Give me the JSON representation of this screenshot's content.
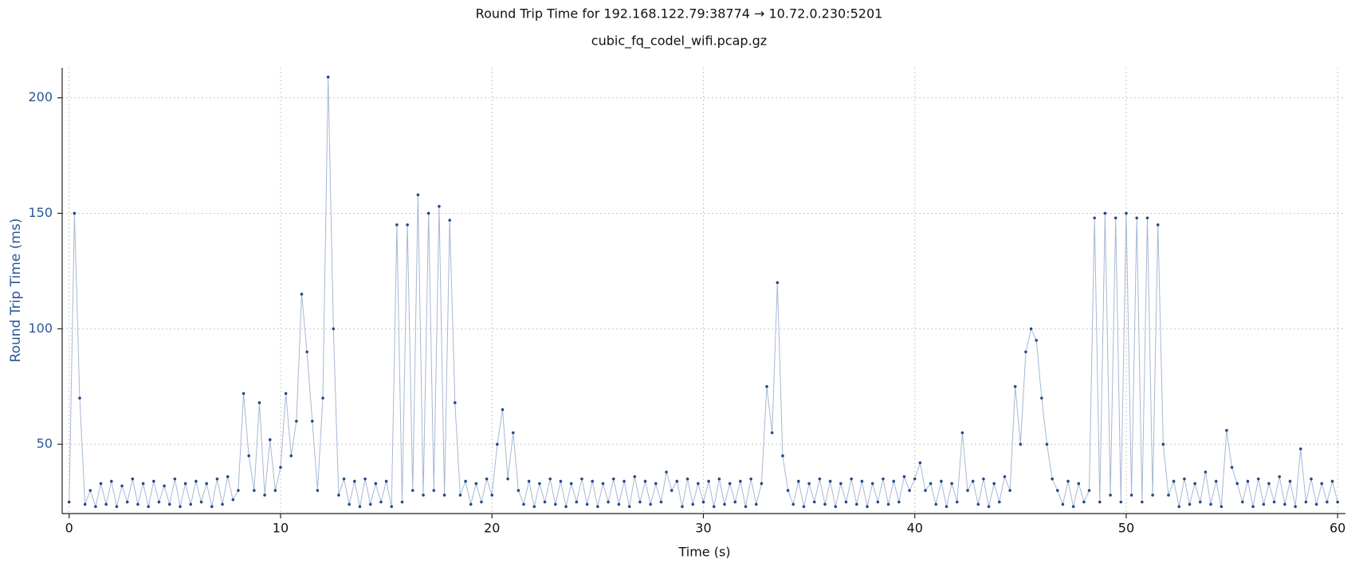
{
  "chart_data": {
    "type": "line",
    "title": "Round Trip Time for 192.168.122.79:38774 → 10.72.0.230:5201",
    "subtitle": "cubic_fq_codel_wifi.pcap.gz",
    "x_label": "Time (s)",
    "y_label": "Round Trip Time (ms)",
    "xlim": [
      -0.33,
      60.37
    ],
    "ylim": [
      20,
      213
    ],
    "xticks": [
      0,
      10,
      20,
      30,
      40,
      50,
      60
    ],
    "yticks": [
      50,
      100,
      150,
      200
    ],
    "grid": true,
    "x": [
      0,
      0.25,
      0.5,
      0.75,
      1,
      1.25,
      1.5,
      1.75,
      2,
      2.25,
      2.5,
      2.75,
      3,
      3.25,
      3.5,
      3.75,
      4,
      4.25,
      4.5,
      4.75,
      5,
      5.25,
      5.5,
      5.75,
      6,
      6.25,
      6.5,
      6.75,
      7,
      7.25,
      7.5,
      7.75,
      8,
      8.25,
      8.5,
      8.75,
      9,
      9.25,
      9.5,
      9.75,
      10,
      10.25,
      10.5,
      10.75,
      11,
      11.25,
      11.5,
      11.75,
      12,
      12.25,
      12.5,
      12.75,
      13,
      13.25,
      13.5,
      13.75,
      14,
      14.25,
      14.5,
      14.75,
      15,
      15.25,
      15.5,
      15.75,
      16,
      16.25,
      16.5,
      16.75,
      17,
      17.25,
      17.5,
      17.75,
      18,
      18.25,
      18.5,
      18.75,
      19,
      19.25,
      19.5,
      19.75,
      20,
      20.25,
      20.5,
      20.75,
      21,
      21.25,
      21.5,
      21.75,
      22,
      22.25,
      22.5,
      22.75,
      23,
      23.25,
      23.5,
      23.75,
      24,
      24.25,
      24.5,
      24.75,
      25,
      25.25,
      25.5,
      25.75,
      26,
      26.25,
      26.5,
      26.75,
      27,
      27.25,
      27.5,
      27.75,
      28,
      28.25,
      28.5,
      28.75,
      29,
      29.25,
      29.5,
      29.75,
      30,
      30.25,
      30.5,
      30.75,
      31,
      31.25,
      31.5,
      31.75,
      32,
      32.25,
      32.5,
      32.75,
      33,
      33.25,
      33.5,
      33.75,
      34,
      34.25,
      34.5,
      34.75,
      35,
      35.25,
      35.5,
      35.75,
      36,
      36.25,
      36.5,
      36.75,
      37,
      37.25,
      37.5,
      37.75,
      38,
      38.25,
      38.5,
      38.75,
      39,
      39.25,
      39.5,
      39.75,
      40,
      40.25,
      40.5,
      40.75,
      41,
      41.25,
      41.5,
      41.75,
      42,
      42.25,
      42.5,
      42.75,
      43,
      43.25,
      43.5,
      43.75,
      44,
      44.25,
      44.5,
      44.75,
      45,
      45.25,
      45.5,
      45.75,
      46,
      46.25,
      46.5,
      46.75,
      47,
      47.25,
      47.5,
      47.75,
      48,
      48.25,
      48.5,
      48.75,
      49,
      49.25,
      49.5,
      49.75,
      50,
      50.25,
      50.5,
      50.75,
      51,
      51.25,
      51.5,
      51.75,
      52,
      52.25,
      52.5,
      52.75,
      53,
      53.25,
      53.5,
      53.75,
      54,
      54.25,
      54.5,
      54.75,
      55,
      55.25,
      55.5,
      55.75,
      56,
      56.25,
      56.5,
      56.75,
      57,
      57.25,
      57.5,
      57.75,
      58,
      58.25,
      58.5,
      58.75,
      59,
      59.25,
      59.5,
      59.75,
      60
    ],
    "series": [
      {
        "color": "#1f4a87",
        "line_color": "#a7b8d4",
        "values": [
          25,
          150,
          70,
          24,
          30,
          23,
          33,
          24,
          34,
          23,
          32,
          25,
          35,
          24,
          33,
          23,
          34,
          25,
          32,
          24,
          35,
          23,
          33,
          24,
          34,
          25,
          33,
          23,
          35,
          24,
          36,
          26,
          30,
          72,
          45,
          30,
          68,
          28,
          52,
          30,
          40,
          72,
          45,
          60,
          115,
          90,
          60,
          30,
          70,
          209,
          100,
          28,
          35,
          24,
          34,
          23,
          35,
          24,
          33,
          25,
          34,
          23,
          145,
          25,
          145,
          30,
          158,
          28,
          150,
          30,
          153,
          28,
          147,
          68,
          28,
          34,
          24,
          33,
          25,
          35,
          28,
          50,
          65,
          35,
          55,
          30,
          24,
          34,
          23,
          33,
          25,
          35,
          24,
          34,
          23,
          33,
          25,
          35,
          24,
          34,
          23,
          33,
          25,
          35,
          24,
          34,
          23,
          36,
          25,
          34,
          24,
          33,
          25,
          38,
          30,
          34,
          23,
          35,
          24,
          33,
          25,
          34,
          23,
          35,
          24,
          33,
          25,
          34,
          23,
          35,
          24,
          33,
          75,
          55,
          120,
          45,
          30,
          24,
          34,
          23,
          33,
          25,
          35,
          24,
          34,
          23,
          33,
          25,
          35,
          24,
          34,
          23,
          33,
          25,
          35,
          24,
          34,
          25,
          36,
          30,
          35,
          42,
          30,
          33,
          24,
          34,
          23,
          33,
          25,
          55,
          30,
          34,
          24,
          35,
          23,
          33,
          25,
          36,
          30,
          75,
          50,
          90,
          100,
          95,
          70,
          50,
          35,
          30,
          24,
          34,
          23,
          33,
          25,
          30,
          148,
          25,
          150,
          28,
          148,
          25,
          150,
          28,
          148,
          25,
          148,
          28,
          145,
          50,
          28,
          34,
          23,
          35,
          24,
          33,
          25,
          38,
          24,
          34,
          23,
          56,
          40,
          33,
          25,
          34,
          23,
          35,
          24,
          33,
          25,
          36,
          24,
          34,
          23,
          48,
          25,
          35,
          24,
          33,
          25,
          34,
          25
        ]
      }
    ]
  }
}
